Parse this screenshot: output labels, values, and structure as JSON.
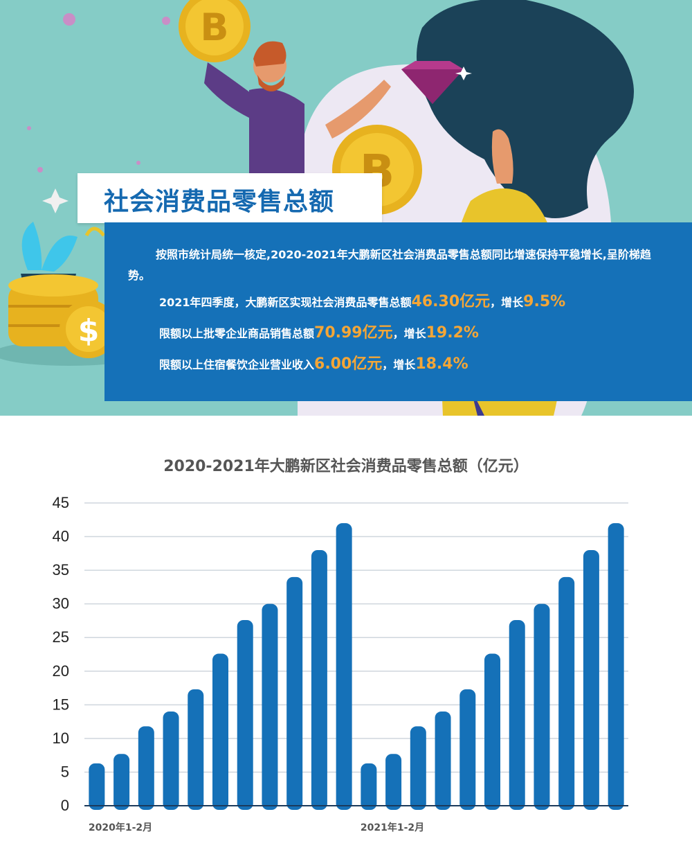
{
  "header": {
    "title": "社会消费品零售总额"
  },
  "info": {
    "intro": "按照市统计局统一核定,2020-2021年大鹏新区社会消费品零售总额同比增速保持平稳增长,呈阶梯趋势。",
    "items": [
      {
        "prefix": "2021年四季度，大鹏新区实现社会消费品零售总额",
        "value": "46.30亿元",
        "mid": "，增长",
        "growth": "9.5%"
      },
      {
        "prefix": "限额以上批零企业商品销售总额",
        "value": "70.99亿元",
        "mid": "，增长",
        "growth": "19.2%"
      },
      {
        "prefix": "限额以上住宿餐饮企业营业收入",
        "value": "6.00亿元",
        "mid": "，增长",
        "growth": "18.4%"
      }
    ]
  },
  "colors": {
    "hero_bg": "#85ccc6",
    "title": "#1569b0",
    "info_bg": "#1571b8",
    "highlight": "#f5a636",
    "bar": "#1571b8"
  },
  "chart_data": {
    "type": "bar",
    "title": "2020-2021年大鹏新区社会消费品零售总额（亿元）",
    "xlabel": "",
    "ylabel": "",
    "ylim": [
      0,
      45
    ],
    "yticks": [
      0,
      5,
      10,
      15,
      20,
      25,
      30,
      35,
      40,
      45
    ],
    "grid": true,
    "category_labels": [
      "2020年1-2月",
      "2021年1-2月"
    ],
    "label_positions": [
      0,
      11
    ],
    "values": [
      6.3,
      7.7,
      11.8,
      14.0,
      17.3,
      22.6,
      27.6,
      30.0,
      34.0,
      38.0,
      42.0,
      6.3,
      7.7,
      11.8,
      14.0,
      17.3,
      22.6,
      27.6,
      30.0,
      34.0,
      38.0,
      42.0
    ]
  }
}
